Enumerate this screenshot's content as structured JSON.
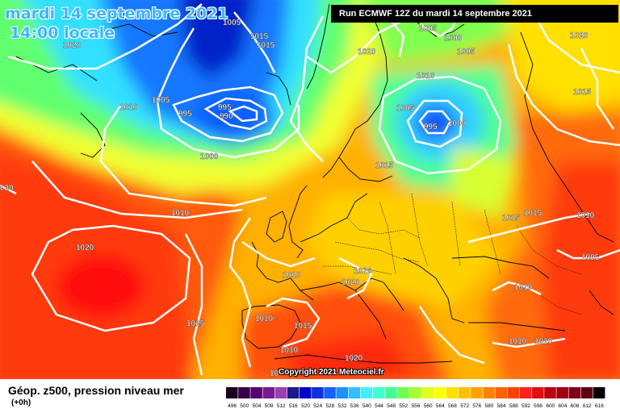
{
  "header": {
    "date": "mardi 14 septembre 2021",
    "time": "14:00 locale",
    "run": "Run ECMWF 12Z du mardi 14 septembre 2021"
  },
  "copyright": "Copyright 2021 Meteociel.fr",
  "legend": {
    "title": "Géop. z500, pression niveau mer",
    "subtitle": "(+0h)",
    "scale_values": [
      496,
      500,
      504,
      508,
      512,
      516,
      520,
      524,
      528,
      532,
      536,
      540,
      544,
      548,
      552,
      556,
      560,
      564,
      568,
      572,
      576,
      580,
      584,
      588,
      592,
      596,
      600,
      604,
      608,
      612,
      616
    ],
    "scale_colors": [
      "#1a0020",
      "#3a0048",
      "#5a0070",
      "#7a1a90",
      "#9a40b0",
      "#1a1a8a",
      "#0000c8",
      "#1030e0",
      "#1860ff",
      "#2090ff",
      "#30c0ff",
      "#40f0ff",
      "#40ffd0",
      "#40ff90",
      "#70ff50",
      "#a8ff30",
      "#e0ff20",
      "#ffff00",
      "#ffe000",
      "#ffc000",
      "#ffa000",
      "#ff8000",
      "#ff6000",
      "#ff4000",
      "#ff2020",
      "#e01010",
      "#c00010",
      "#a00010",
      "#800018",
      "#600010",
      "#000000"
    ]
  },
  "isobars": [
    {
      "label": "1005"
    },
    {
      "label": "1015"
    },
    {
      "label": "1015"
    },
    {
      "label": "1020"
    },
    {
      "label": "1005"
    },
    {
      "label": "1000"
    },
    {
      "label": "1020"
    },
    {
      "label": "1005"
    },
    {
      "label": "1010"
    },
    {
      "label": "1005"
    },
    {
      "label": "995"
    },
    {
      "label": "995"
    },
    {
      "label": "990"
    },
    {
      "label": "1000"
    },
    {
      "label": "1020"
    },
    {
      "label": "1005"
    },
    {
      "label": "995"
    },
    {
      "label": "1000"
    },
    {
      "label": "1015"
    },
    {
      "label": "1010"
    },
    {
      "label": "1010"
    },
    {
      "label": "1015"
    },
    {
      "label": "1015"
    },
    {
      "label": "1010"
    },
    {
      "label": "1020"
    },
    {
      "label": "1010"
    },
    {
      "label": "1020"
    },
    {
      "label": "1020"
    },
    {
      "label": "1005"
    },
    {
      "label": "1010"
    },
    {
      "label": "1010"
    },
    {
      "label": "1015"
    },
    {
      "label": "1010"
    },
    {
      "label": "1015"
    },
    {
      "label": "1010"
    },
    {
      "label": "1010"
    },
    {
      "label": "1020"
    },
    {
      "label": "10"
    },
    {
      "label": "1015"
    },
    {
      "label": "020"
    }
  ]
}
